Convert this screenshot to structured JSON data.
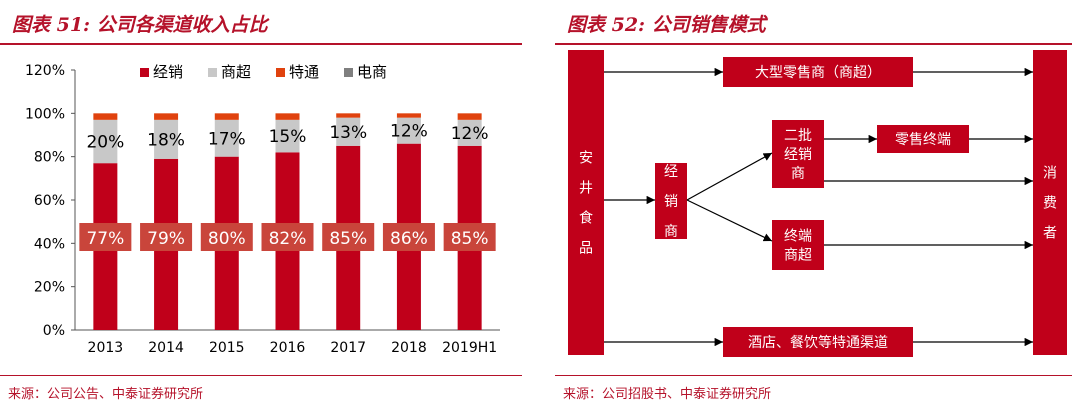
{
  "left": {
    "title": "图表 51: 公司各渠道收入占比",
    "source": "来源：公司公告、中泰证券研究所"
  },
  "right": {
    "title": "图表 52: 公司销售模式",
    "source": "来源：公司招股书、中泰证券研究所",
    "nodes": {
      "company": "安井食品",
      "distributor": "经销商",
      "secondary": "二批经销商",
      "terminal_super": "终端商超",
      "retail_terminal": "零售终端",
      "large_retail": "大型零售商（商超）",
      "hotel": "酒店、餐饮等特通渠道",
      "consumer": "消费者"
    }
  },
  "chart_data": {
    "type": "bar",
    "stacked": true,
    "categories": [
      "2013",
      "2014",
      "2015",
      "2016",
      "2017",
      "2018",
      "2019H1"
    ],
    "series": [
      {
        "name": "经销",
        "values": [
          77,
          79,
          80,
          82,
          85,
          86,
          85
        ],
        "color": "#c0001a"
      },
      {
        "name": "商超",
        "values": [
          20,
          18,
          17,
          15,
          13,
          12,
          12
        ],
        "color": "#c8c8c8"
      },
      {
        "name": "特通",
        "values": [
          3,
          3,
          3,
          3,
          2,
          2,
          3
        ],
        "color": "#e0420e"
      },
      {
        "name": "电商",
        "values": [
          0,
          0,
          0,
          0,
          0,
          0,
          0
        ],
        "color": "#7f7f7f"
      }
    ],
    "data_labels": {
      "经销": [
        "77%",
        "79%",
        "80%",
        "82%",
        "85%",
        "86%",
        "85%"
      ],
      "商超": [
        "20%",
        "18%",
        "17%",
        "15%",
        "13%",
        "12%",
        "12%"
      ]
    },
    "yticks": [
      "0%",
      "20%",
      "40%",
      "60%",
      "80%",
      "100%",
      "120%"
    ],
    "ylim": [
      0,
      120
    ],
    "legend_position": "top",
    "grid": false
  }
}
